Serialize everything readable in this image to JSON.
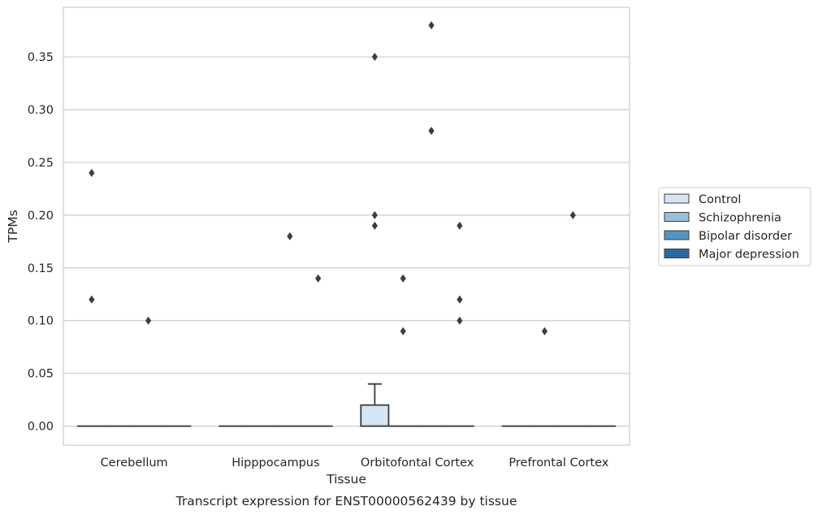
{
  "chart_data": {
    "type": "box",
    "title": "",
    "caption": "Transcript expression for ENST00000562439 by tissue",
    "xlabel": "Tissue",
    "ylabel": "TPMs",
    "ylim": [
      -0.018,
      0.397
    ],
    "yticks": [
      "0.00",
      "0.05",
      "0.10",
      "0.15",
      "0.20",
      "0.25",
      "0.30",
      "0.35"
    ],
    "grid": true,
    "legend_position": "right",
    "categories": [
      "Cerebellum",
      "Hipppocampus",
      "Orbitofontal Cortex",
      "Prefrontal Cortex"
    ],
    "series": [
      {
        "name": "Control",
        "color": "#d6e5f2",
        "boxes": [
          {
            "q1": 0,
            "median": 0,
            "q3": 0,
            "whisker_low": 0,
            "whisker_high": 0,
            "outliers": [
              0.24,
              0.12
            ]
          },
          {
            "q1": 0,
            "median": 0,
            "q3": 0,
            "whisker_low": 0,
            "whisker_high": 0,
            "outliers": []
          },
          {
            "q1": 0,
            "median": 0,
            "q3": 0.02,
            "whisker_low": 0,
            "whisker_high": 0.04,
            "outliers": [
              0.35,
              0.2,
              0.19
            ]
          },
          {
            "q1": 0,
            "median": 0,
            "q3": 0,
            "whisker_low": 0,
            "whisker_high": 0,
            "outliers": []
          }
        ]
      },
      {
        "name": "Schizophrenia",
        "color": "#98c0dc",
        "boxes": [
          {
            "q1": 0,
            "median": 0,
            "q3": 0,
            "whisker_low": 0,
            "whisker_high": 0,
            "outliers": []
          },
          {
            "q1": 0,
            "median": 0,
            "q3": 0,
            "whisker_low": 0,
            "whisker_high": 0,
            "outliers": []
          },
          {
            "q1": 0,
            "median": 0,
            "q3": 0,
            "whisker_low": 0,
            "whisker_high": 0,
            "outliers": [
              0.14,
              0.09
            ]
          },
          {
            "q1": 0,
            "median": 0,
            "q3": 0,
            "whisker_low": 0,
            "whisker_high": 0,
            "outliers": [
              0.09
            ]
          }
        ]
      },
      {
        "name": "Bipolar disorder",
        "color": "#5494c4",
        "boxes": [
          {
            "q1": 0,
            "median": 0,
            "q3": 0,
            "whisker_low": 0,
            "whisker_high": 0,
            "outliers": [
              0.1
            ]
          },
          {
            "q1": 0,
            "median": 0,
            "q3": 0,
            "whisker_low": 0,
            "whisker_high": 0,
            "outliers": [
              0.18
            ]
          },
          {
            "q1": 0,
            "median": 0,
            "q3": 0,
            "whisker_low": 0,
            "whisker_high": 0,
            "outliers": [
              0.38,
              0.28
            ]
          },
          {
            "q1": 0,
            "median": 0,
            "q3": 0,
            "whisker_low": 0,
            "whisker_high": 0,
            "outliers": [
              0.2
            ]
          }
        ]
      },
      {
        "name": "Major depression",
        "color": "#2a69a9",
        "boxes": [
          {
            "q1": 0,
            "median": 0,
            "q3": 0,
            "whisker_low": 0,
            "whisker_high": 0,
            "outliers": []
          },
          {
            "q1": 0,
            "median": 0,
            "q3": 0,
            "whisker_low": 0,
            "whisker_high": 0,
            "outliers": [
              0.14
            ]
          },
          {
            "q1": 0,
            "median": 0,
            "q3": 0,
            "whisker_low": 0,
            "whisker_high": 0,
            "outliers": [
              0.19,
              0.12,
              0.1
            ]
          },
          {
            "q1": 0,
            "median": 0,
            "q3": 0,
            "whisker_low": 0,
            "whisker_high": 0,
            "outliers": []
          }
        ]
      }
    ]
  }
}
